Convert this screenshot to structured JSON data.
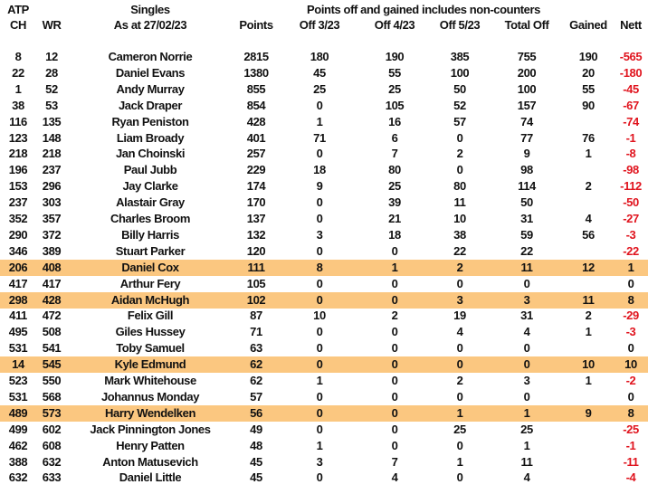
{
  "header": {
    "atp": "ATP",
    "singles": "Singles",
    "note": "Points off and gained includes non-counters",
    "columns": [
      "CH",
      "WR",
      "As at 27/02/23",
      "Points",
      "Off 3/23",
      "Off 4/23",
      "Off 5/23",
      "Total Off",
      "Gained",
      "Nett"
    ]
  },
  "colors": {
    "highlight": "#fbc780",
    "negative": "#e0141e"
  },
  "rows": [
    {
      "ch": "8",
      "wr": "12",
      "name": "Cameron Norrie",
      "points": "2815",
      "off3": "180",
      "off4": "190",
      "off5": "385",
      "total": "755",
      "gained": "190",
      "nett": "-565",
      "hl": false
    },
    {
      "ch": "22",
      "wr": "28",
      "name": "Daniel Evans",
      "points": "1380",
      "off3": "45",
      "off4": "55",
      "off5": "100",
      "total": "200",
      "gained": "20",
      "nett": "-180",
      "hl": false
    },
    {
      "ch": "1",
      "wr": "52",
      "name": "Andy Murray",
      "points": "855",
      "off3": "25",
      "off4": "25",
      "off5": "50",
      "total": "100",
      "gained": "55",
      "nett": "-45",
      "hl": false
    },
    {
      "ch": "38",
      "wr": "53",
      "name": "Jack Draper",
      "points": "854",
      "off3": "0",
      "off4": "105",
      "off5": "52",
      "total": "157",
      "gained": "90",
      "nett": "-67",
      "hl": false
    },
    {
      "ch": "116",
      "wr": "135",
      "name": "Ryan Peniston",
      "points": "428",
      "off3": "1",
      "off4": "16",
      "off5": "57",
      "total": "74",
      "gained": "",
      "nett": "-74",
      "hl": false
    },
    {
      "ch": "123",
      "wr": "148",
      "name": "Liam Broady",
      "points": "401",
      "off3": "71",
      "off4": "6",
      "off5": "0",
      "total": "77",
      "gained": "76",
      "nett": "-1",
      "hl": false
    },
    {
      "ch": "218",
      "wr": "218",
      "name": "Jan Choinski",
      "points": "257",
      "off3": "0",
      "off4": "7",
      "off5": "2",
      "total": "9",
      "gained": "1",
      "nett": "-8",
      "hl": false
    },
    {
      "ch": "196",
      "wr": "237",
      "name": "Paul Jubb",
      "points": "229",
      "off3": "18",
      "off4": "80",
      "off5": "0",
      "total": "98",
      "gained": "",
      "nett": "-98",
      "hl": false
    },
    {
      "ch": "153",
      "wr": "296",
      "name": "Jay Clarke",
      "points": "174",
      "off3": "9",
      "off4": "25",
      "off5": "80",
      "total": "114",
      "gained": "2",
      "nett": "-112",
      "hl": false
    },
    {
      "ch": "237",
      "wr": "303",
      "name": "Alastair Gray",
      "points": "170",
      "off3": "0",
      "off4": "39",
      "off5": "11",
      "total": "50",
      "gained": "",
      "nett": "-50",
      "hl": false
    },
    {
      "ch": "352",
      "wr": "357",
      "name": "Charles Broom",
      "points": "137",
      "off3": "0",
      "off4": "21",
      "off5": "10",
      "total": "31",
      "gained": "4",
      "nett": "-27",
      "hl": false
    },
    {
      "ch": "290",
      "wr": "372",
      "name": "Billy Harris",
      "points": "132",
      "off3": "3",
      "off4": "18",
      "off5": "38",
      "total": "59",
      "gained": "56",
      "nett": "-3",
      "hl": false
    },
    {
      "ch": "346",
      "wr": "389",
      "name": "Stuart Parker",
      "points": "120",
      "off3": "0",
      "off4": "0",
      "off5": "22",
      "total": "22",
      "gained": "",
      "nett": "-22",
      "hl": false
    },
    {
      "ch": "206",
      "wr": "408",
      "name": "Daniel Cox",
      "points": "111",
      "off3": "8",
      "off4": "1",
      "off5": "2",
      "total": "11",
      "gained": "12",
      "nett": "1",
      "hl": true
    },
    {
      "ch": "417",
      "wr": "417",
      "name": "Arthur Fery",
      "points": "105",
      "off3": "0",
      "off4": "0",
      "off5": "0",
      "total": "0",
      "gained": "",
      "nett": "0",
      "hl": false
    },
    {
      "ch": "298",
      "wr": "428",
      "name": "Aidan McHugh",
      "points": "102",
      "off3": "0",
      "off4": "0",
      "off5": "3",
      "total": "3",
      "gained": "11",
      "nett": "8",
      "hl": true
    },
    {
      "ch": "411",
      "wr": "472",
      "name": "Felix Gill",
      "points": "87",
      "off3": "10",
      "off4": "2",
      "off5": "19",
      "total": "31",
      "gained": "2",
      "nett": "-29",
      "hl": false
    },
    {
      "ch": "495",
      "wr": "508",
      "name": "Giles Hussey",
      "points": "71",
      "off3": "0",
      "off4": "0",
      "off5": "4",
      "total": "4",
      "gained": "1",
      "nett": "-3",
      "hl": false
    },
    {
      "ch": "531",
      "wr": "541",
      "name": "Toby Samuel",
      "points": "63",
      "off3": "0",
      "off4": "0",
      "off5": "0",
      "total": "0",
      "gained": "",
      "nett": "0",
      "hl": false
    },
    {
      "ch": "14",
      "wr": "545",
      "name": "Kyle Edmund",
      "points": "62",
      "off3": "0",
      "off4": "0",
      "off5": "0",
      "total": "0",
      "gained": "10",
      "nett": "10",
      "hl": true
    },
    {
      "ch": "523",
      "wr": "550",
      "name": "Mark Whitehouse",
      "points": "62",
      "off3": "1",
      "off4": "0",
      "off5": "2",
      "total": "3",
      "gained": "1",
      "nett": "-2",
      "hl": false
    },
    {
      "ch": "531",
      "wr": "568",
      "name": "Johannus Monday",
      "points": "57",
      "off3": "0",
      "off4": "0",
      "off5": "0",
      "total": "0",
      "gained": "",
      "nett": "0",
      "hl": false
    },
    {
      "ch": "489",
      "wr": "573",
      "name": "Harry Wendelken",
      "points": "56",
      "off3": "0",
      "off4": "0",
      "off5": "1",
      "total": "1",
      "gained": "9",
      "nett": "8",
      "hl": true
    },
    {
      "ch": "499",
      "wr": "602",
      "name": "Jack Pinnington Jones",
      "points": "49",
      "off3": "0",
      "off4": "0",
      "off5": "25",
      "total": "25",
      "gained": "",
      "nett": "-25",
      "hl": false
    },
    {
      "ch": "462",
      "wr": "608",
      "name": "Henry Patten",
      "points": "48",
      "off3": "1",
      "off4": "0",
      "off5": "0",
      "total": "1",
      "gained": "",
      "nett": "-1",
      "hl": false
    },
    {
      "ch": "388",
      "wr": "632",
      "name": "Anton Matusevich",
      "points": "45",
      "off3": "3",
      "off4": "7",
      "off5": "1",
      "total": "11",
      "gained": "",
      "nett": "-11",
      "hl": false
    },
    {
      "ch": "632",
      "wr": "633",
      "name": "Daniel Little",
      "points": "45",
      "off3": "0",
      "off4": "4",
      "off5": "0",
      "total": "4",
      "gained": "",
      "nett": "-4",
      "hl": false
    }
  ]
}
